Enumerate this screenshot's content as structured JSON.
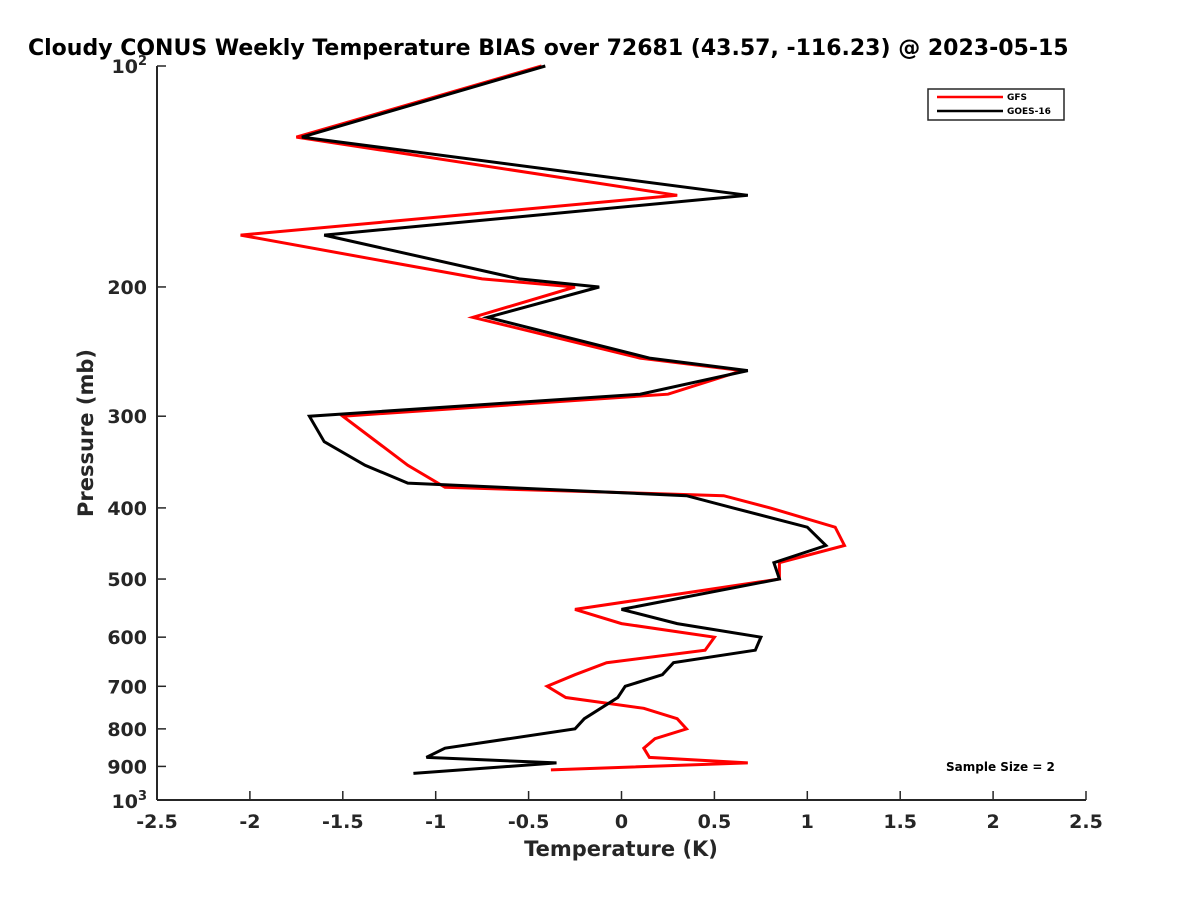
{
  "chart_data": {
    "type": "line",
    "title": "Cloudy CONUS Weekly Temperature BIAS over 72681 (43.57, -116.23) @ 2023-05-15",
    "xlabel": "Temperature (K)",
    "ylabel": "Pressure (mb)",
    "xlim": [
      -2.5,
      2.5
    ],
    "ylim": [
      100,
      1000
    ],
    "y_scale": "log",
    "y_reversed": true,
    "grid": false,
    "legend_position": "top-right",
    "x_ticks": [
      "-2.5",
      "-2",
      "-1.5",
      "-1",
      "-0.5",
      "0",
      "0.5",
      "1",
      "1.5",
      "2",
      "2.5"
    ],
    "y_ticks": [
      {
        "label": "200",
        "value": 200
      },
      {
        "label": "300",
        "value": 300
      },
      {
        "label": "400",
        "value": 400
      },
      {
        "label": "500",
        "value": 500
      },
      {
        "label": "600",
        "value": 600
      },
      {
        "label": "700",
        "value": 700
      },
      {
        "label": "800",
        "value": 800
      },
      {
        "label": "900",
        "value": 900
      }
    ],
    "y_tick_top": {
      "base": "10",
      "exp": "2",
      "value": 100
    },
    "y_tick_bottom": {
      "base": "10",
      "exp": "3",
      "value": 1000
    },
    "annotation": "Sample Size = 2",
    "series": [
      {
        "name": "GFS",
        "color": "#ff0000",
        "points": [
          [
            -0.43,
            100
          ],
          [
            -1.75,
            125
          ],
          [
            0.3,
            150
          ],
          [
            -2.05,
            170
          ],
          [
            -0.75,
            195
          ],
          [
            -0.25,
            200
          ],
          [
            -0.8,
            220
          ],
          [
            0.1,
            250
          ],
          [
            0.65,
            260
          ],
          [
            0.25,
            280
          ],
          [
            -1.5,
            300
          ],
          [
            -1.15,
            350
          ],
          [
            -0.95,
            375
          ],
          [
            0.55,
            385
          ],
          [
            0.8,
            400
          ],
          [
            1.15,
            425
          ],
          [
            1.2,
            450
          ],
          [
            0.85,
            475
          ],
          [
            0.85,
            500
          ],
          [
            -0.25,
            550
          ],
          [
            0.0,
            575
          ],
          [
            0.5,
            600
          ],
          [
            0.45,
            625
          ],
          [
            -0.08,
            650
          ],
          [
            -0.25,
            675
          ],
          [
            -0.4,
            700
          ],
          [
            -0.3,
            725
          ],
          [
            0.12,
            750
          ],
          [
            0.3,
            775
          ],
          [
            0.35,
            800
          ],
          [
            0.18,
            825
          ],
          [
            0.12,
            850
          ],
          [
            0.15,
            875
          ],
          [
            0.68,
            890
          ],
          [
            -0.38,
            910
          ]
        ]
      },
      {
        "name": "GOES-16",
        "color": "#000000",
        "points": [
          [
            -0.41,
            100
          ],
          [
            -1.72,
            125
          ],
          [
            0.68,
            150
          ],
          [
            -1.6,
            170
          ],
          [
            -0.55,
            195
          ],
          [
            -0.12,
            200
          ],
          [
            -0.72,
            220
          ],
          [
            0.15,
            250
          ],
          [
            0.68,
            260
          ],
          [
            0.1,
            280
          ],
          [
            -1.68,
            300
          ],
          [
            -1.6,
            325
          ],
          [
            -1.38,
            350
          ],
          [
            -1.15,
            370
          ],
          [
            0.35,
            385
          ],
          [
            0.6,
            400
          ],
          [
            1.0,
            425
          ],
          [
            1.1,
            450
          ],
          [
            0.82,
            475
          ],
          [
            0.85,
            500
          ],
          [
            0.0,
            550
          ],
          [
            0.3,
            575
          ],
          [
            0.75,
            600
          ],
          [
            0.72,
            625
          ],
          [
            0.28,
            650
          ],
          [
            0.22,
            675
          ],
          [
            0.02,
            700
          ],
          [
            -0.02,
            725
          ],
          [
            -0.2,
            775
          ],
          [
            -0.25,
            800
          ],
          [
            -0.95,
            850
          ],
          [
            -1.05,
            875
          ],
          [
            -0.35,
            890
          ],
          [
            -1.12,
            920
          ]
        ]
      }
    ]
  }
}
